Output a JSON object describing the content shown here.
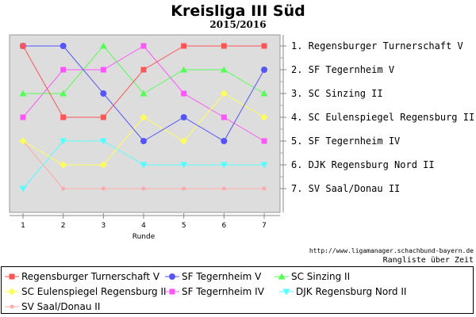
{
  "chart_data": {
    "type": "line",
    "title": "Kreisliga III Süd",
    "subtitle": "2015/2016",
    "xlabel": "Runde",
    "ylabel": "",
    "x": [
      1,
      2,
      3,
      4,
      5,
      6,
      7
    ],
    "x_ticks": [
      "1",
      "2",
      "3",
      "4",
      "5",
      "6",
      "7"
    ],
    "ylim": [
      1,
      7
    ],
    "y_inverted": true,
    "grid": false,
    "legend_placement": "bottom",
    "final_ranking": [
      "1. Regensburger Turnerschaft V",
      "2. SF Tegernheim V",
      "3. SC Sinzing II",
      "4. SC Eulenspiegel Regensburg II",
      "5. SF Tegernheim IV",
      "6. DJK Regensburg Nord II",
      "7. SV Saal/Donau II"
    ],
    "series": [
      {
        "name": "Regensburger Turnerschaft V",
        "color": "#ff5555",
        "marker": "square",
        "values": [
          1,
          4,
          4,
          2,
          1,
          1,
          1
        ]
      },
      {
        "name": "SF Tegernheim V",
        "color": "#5555ff",
        "marker": "circle",
        "values": [
          1,
          1,
          3,
          5,
          4,
          5,
          2
        ]
      },
      {
        "name": "SC Sinzing II",
        "color": "#55ff55",
        "marker": "triangle",
        "values": [
          3,
          3,
          1,
          3,
          2,
          2,
          3
        ]
      },
      {
        "name": "SC Eulenspiegel Regensburg II",
        "color": "#ffff55",
        "marker": "diamond",
        "values": [
          5,
          6,
          6,
          4,
          5,
          3,
          4
        ]
      },
      {
        "name": "SF Tegernheim IV",
        "color": "#ff55ff",
        "marker": "square",
        "values": [
          4,
          2,
          2,
          1,
          3,
          4,
          5
        ]
      },
      {
        "name": "DJK Regensburg Nord II",
        "color": "#55ffff",
        "marker": "triangle-down",
        "values": [
          7,
          5,
          5,
          6,
          6,
          6,
          6
        ]
      },
      {
        "name": "SV Saal/Donau II",
        "color": "#ffaaaa",
        "marker": "small-circle",
        "values": [
          5,
          7,
          7,
          7,
          7,
          7,
          7
        ]
      }
    ],
    "source_url": "http://www.ligamanager.schachbund-bayern.de",
    "caption": "Rangliste über Zeit"
  }
}
